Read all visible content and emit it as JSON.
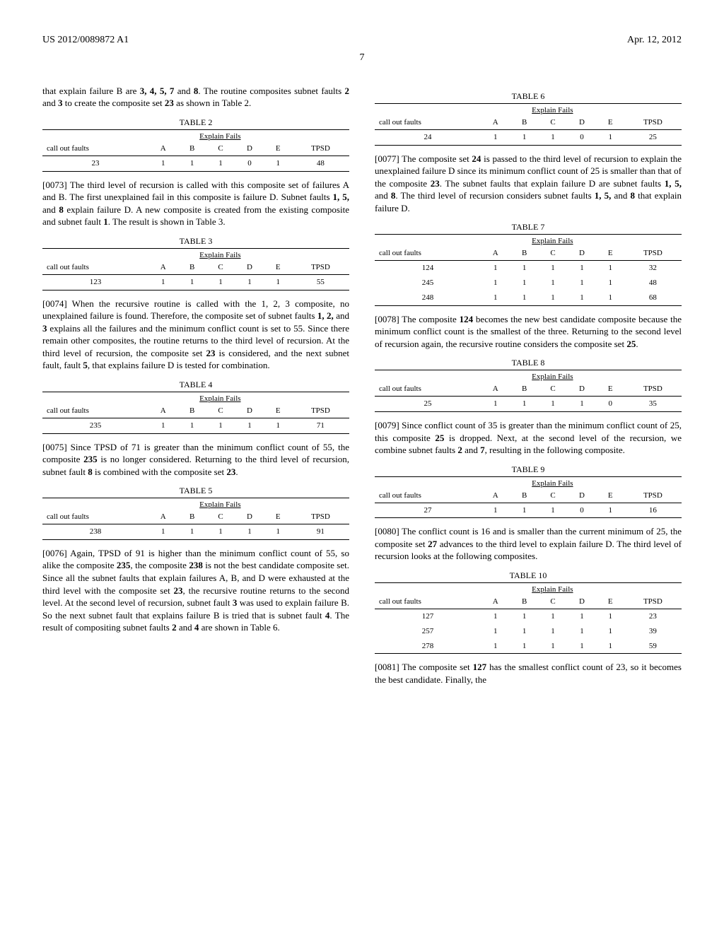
{
  "header": {
    "pub_number": "US 2012/0089872 A1",
    "pub_date": "Apr. 12, 2012",
    "page_number": "7"
  },
  "left": {
    "para_intro": "that explain failure B are ",
    "para_intro_bold": "3, 4, 5, 7",
    "para_intro_mid": " and ",
    "para_intro_bold2": "8",
    "para_intro_end": ". The routine composites subnet faults ",
    "para_intro_bold3": "2",
    "para_intro_and": " and ",
    "para_intro_bold4": "3",
    "para_intro_final": " to create the composite set ",
    "para_intro_bold5": "23",
    "para_intro_close": " as shown in Table 2.",
    "table2": {
      "caption": "TABLE 2",
      "explain_label": "Explain Fails",
      "row_label": "call out faults",
      "cols": [
        "A",
        "B",
        "C",
        "D",
        "E",
        "TPSD"
      ],
      "rows": [
        [
          "23",
          "1",
          "1",
          "1",
          "0",
          "1",
          "48"
        ]
      ]
    },
    "para73_num": "[0073]",
    "para73": "   The third level of recursion is called with this composite set of failures A and B. The first unexplained fail in this composite is failure D. Subnet faults ",
    "para73_b1": "1, 5,",
    "para73_mid": " and ",
    "para73_b2": "8",
    "para73_end": " explain failure D. A new composite is created from the existing composite and subnet fault ",
    "para73_b3": "1",
    "para73_close": ". The result is shown in Table 3.",
    "table3": {
      "caption": "TABLE 3",
      "rows": [
        [
          "123",
          "1",
          "1",
          "1",
          "1",
          "1",
          "55"
        ]
      ]
    },
    "para74_num": "[0074]",
    "para74": "   When the recursive routine is called with the 1, 2, 3 composite, no unexplained failure is found. Therefore, the composite set of subnet faults ",
    "para74_b1": "1, 2,",
    "para74_mid": " and ",
    "para74_b2": "3",
    "para74_end": " explains all the failures and the minimum conflict count is set to 55. Since there remain other composites, the routine returns to the third level of recursion. At the third level of recursion, the composite set ",
    "para74_b3": "23",
    "para74_end2": " is considered, and the next subnet fault, fault ",
    "para74_b4": "5",
    "para74_close": ", that explains failure D is tested for combination.",
    "table4": {
      "caption": "TABLE 4",
      "rows": [
        [
          "235",
          "1",
          "1",
          "1",
          "1",
          "1",
          "71"
        ]
      ]
    },
    "para75_num": "[0075]",
    "para75": "   Since TPSD of 71 is greater than the minimum conflict count of 55, the composite ",
    "para75_b1": "235",
    "para75_end": " is no longer considered. Returning to the third level of recursion, subnet fault ",
    "para75_b2": "8",
    "para75_end2": " is combined with the composite set ",
    "para75_b3": "23",
    "para75_close": ".",
    "table5": {
      "caption": "TABLE 5",
      "rows": [
        [
          "238",
          "1",
          "1",
          "1",
          "1",
          "1",
          "91"
        ]
      ]
    },
    "para76_num": "[0076]",
    "para76": "   Again, TPSD of 91 is higher than the minimum conflict count of 55, so alike the composite ",
    "para76_b1": "235",
    "para76_mid": ", the composite ",
    "para76_b2": "238",
    "para76_end": " is not the best candidate composite set. Since all the subnet faults that explain failures A, B, and D were exhausted at the third level with the composite set ",
    "para76_b3": "23",
    "para76_end2": ", the recursive routine returns to the second level. At the second level of recursion, subnet fault ",
    "para76_b4": "3",
    "para76_end3": " was used to explain failure B. So the next subnet fault that explains failure B is tried that is subnet fault ",
    "para76_b5": "4",
    "para76_end4": ". The result of compositing subnet faults ",
    "para76_b6": "2",
    "para76_and": " and ",
    "para76_b7": "4",
    "para76_close": " are shown in Table 6."
  },
  "right": {
    "table6": {
      "caption": "TABLE 6",
      "rows": [
        [
          "24",
          "1",
          "1",
          "1",
          "0",
          "1",
          "25"
        ]
      ]
    },
    "para77_num": "[0077]",
    "para77": "   The composite set ",
    "para77_b1": "24",
    "para77_mid": " is passed to the third level of recursion to explain the unexplained failure D since its minimum conflict count of 25 is smaller than that of the composite ",
    "para77_b2": "23",
    "para77_mid2": ". The subnet faults that explain failure D are subnet faults ",
    "para77_b3": "1, 5,",
    "para77_and": " and ",
    "para77_b4": "8",
    "para77_mid3": ". The third level of recursion considers subnet faults ",
    "para77_b5": "1, 5,",
    "para77_and2": " and ",
    "para77_b6": "8",
    "para77_close": " that explain failure D.",
    "table7": {
      "caption": "TABLE 7",
      "rows": [
        [
          "124",
          "1",
          "1",
          "1",
          "1",
          "1",
          "32"
        ],
        [
          "245",
          "1",
          "1",
          "1",
          "1",
          "1",
          "48"
        ],
        [
          "248",
          "1",
          "1",
          "1",
          "1",
          "1",
          "68"
        ]
      ]
    },
    "para78_num": "[0078]",
    "para78": "   The composite ",
    "para78_b1": "124",
    "para78_mid": " becomes the new best candidate composite because the minimum conflict count is the smallest of the three. Returning to the second level of recursion again, the recursive routine considers the composite set ",
    "para78_b2": "25",
    "para78_close": ".",
    "table8": {
      "caption": "TABLE 8",
      "rows": [
        [
          "25",
          "1",
          "1",
          "1",
          "1",
          "0",
          "35"
        ]
      ]
    },
    "para79_num": "[0079]",
    "para79": "   Since conflict count of 35 is greater than the minimum conflict count of 25, this composite ",
    "para79_b1": "25",
    "para79_mid": " is dropped. Next, at the second level of the recursion, we combine subnet faults ",
    "para79_b2": "2",
    "para79_and": " and ",
    "para79_b3": "7",
    "para79_close": ", resulting in the following composite.",
    "table9": {
      "caption": "TABLE 9",
      "rows": [
        [
          "27",
          "1",
          "1",
          "1",
          "0",
          "1",
          "16"
        ]
      ]
    },
    "para80_num": "[0080]",
    "para80": "   The conflict count is 16 and is smaller than the current minimum of 25, the composite set ",
    "para80_b1": "27",
    "para80_close": " advances to the third level to explain failure D. The third level of recursion looks at the following composites.",
    "table10": {
      "caption": "TABLE 10",
      "rows": [
        [
          "127",
          "1",
          "1",
          "1",
          "1",
          "1",
          "23"
        ],
        [
          "257",
          "1",
          "1",
          "1",
          "1",
          "1",
          "39"
        ],
        [
          "278",
          "1",
          "1",
          "1",
          "1",
          "1",
          "59"
        ]
      ]
    },
    "para81_num": "[0081]",
    "para81": "   The composite set ",
    "para81_b1": "127",
    "para81_close": " has the smallest conflict count of 23, so it becomes the best candidate. Finally, the"
  },
  "common": {
    "explain_label": "Explain Fails",
    "row_label": "call out faults",
    "cols": [
      "A",
      "B",
      "C",
      "D",
      "E",
      "TPSD"
    ]
  }
}
